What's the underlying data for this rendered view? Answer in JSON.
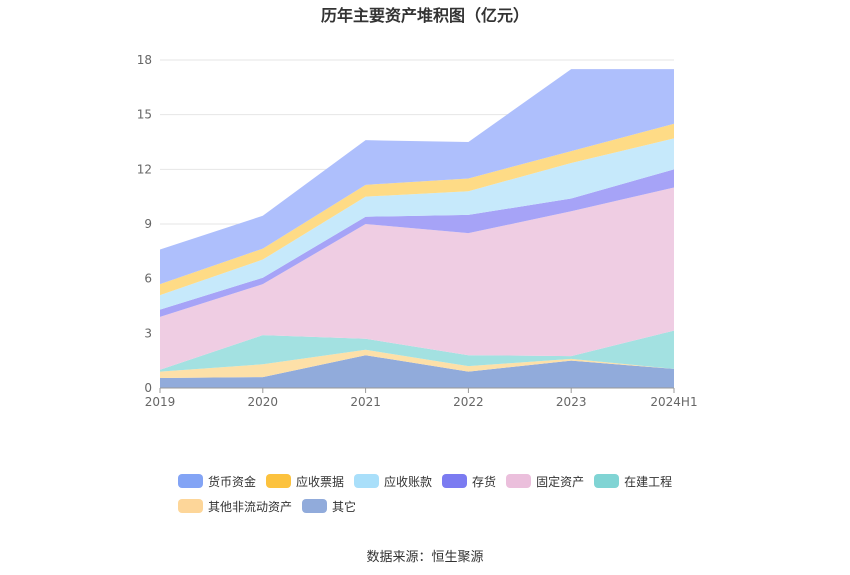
{
  "chart_data": {
    "type": "area",
    "stacked": true,
    "title": "历年主要资产堆积图（亿元）",
    "categories": [
      "2019",
      "2020",
      "2021",
      "2022",
      "2023",
      "2024H1"
    ],
    "y_ticks": [
      "0",
      "3",
      "6",
      "9",
      "12",
      "15",
      "18"
    ],
    "ylim": [
      0,
      18
    ],
    "grid": true,
    "legend_position": "bottom",
    "series": [
      {
        "name": "其它",
        "color": "#91abdb",
        "values": [
          0.55,
          0.6,
          1.8,
          0.9,
          1.5,
          1.05
        ]
      },
      {
        "name": "其他非流动资产",
        "color": "#fde0a8",
        "values": [
          0.35,
          0.7,
          0.3,
          0.3,
          0.1,
          0.0
        ]
      },
      {
        "name": "在建工程",
        "color": "#a3e1e1",
        "values": [
          0.1,
          1.6,
          0.6,
          0.6,
          0.15,
          2.1
        ]
      },
      {
        "name": "固定资产",
        "color": "#efcde3",
        "values": [
          2.9,
          2.8,
          6.3,
          6.7,
          7.95,
          7.85
        ]
      },
      {
        "name": "存货",
        "color": "#a6a3f7",
        "values": [
          0.4,
          0.35,
          0.4,
          1.0,
          0.7,
          1.0
        ]
      },
      {
        "name": "应收账款",
        "color": "#c6e9fb",
        "values": [
          0.8,
          1.0,
          1.1,
          1.3,
          1.95,
          1.7
        ]
      },
      {
        "name": "应收票据",
        "color": "#fedb86",
        "values": [
          0.6,
          0.6,
          0.65,
          0.7,
          0.65,
          0.8
        ]
      },
      {
        "name": "货币资金",
        "color": "#aebffc",
        "values": [
          1.9,
          1.8,
          2.45,
          2.0,
          4.5,
          3.0
        ]
      }
    ]
  },
  "legend": [
    {
      "label": "货币资金",
      "color": "#83a4f5"
    },
    {
      "label": "应收票据",
      "color": "#fcc23e"
    },
    {
      "label": "应收账款",
      "color": "#a9dffa"
    },
    {
      "label": "存货",
      "color": "#7b7bf1"
    },
    {
      "label": "固定资产",
      "color": "#ebbfdc"
    },
    {
      "label": "在建工程",
      "color": "#80d4d4"
    },
    {
      "label": "其他非流动资产",
      "color": "#fdd699"
    },
    {
      "label": "其它",
      "color": "#91abdb"
    }
  ],
  "source_text": "数据来源：恒生聚源"
}
